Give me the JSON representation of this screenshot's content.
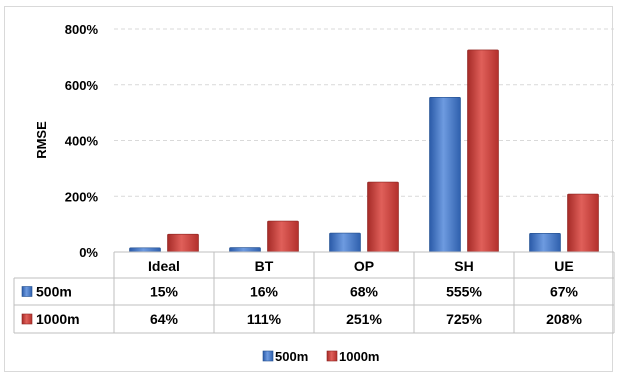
{
  "chart_data": {
    "type": "bar",
    "ylabel": "RMSE",
    "ylim": [
      0,
      800
    ],
    "yticks": [
      "0%",
      "200%",
      "400%",
      "600%",
      "800%"
    ],
    "ytick_values": [
      0,
      200,
      400,
      600,
      800
    ],
    "grid": true,
    "categories": [
      "Ideal",
      "BT",
      "OP",
      "SH",
      "UE"
    ],
    "series": [
      {
        "name": "500m",
        "values": [
          15,
          16,
          68,
          555,
          67
        ],
        "labels": [
          "15%",
          "16%",
          "68%",
          "555%",
          "67%"
        ],
        "color": "#3f74c4"
      },
      {
        "name": "1000m",
        "values": [
          64,
          111,
          251,
          725,
          208
        ],
        "labels": [
          "64%",
          "111%",
          "251%",
          "725%",
          "208%"
        ],
        "color": "#c83a35"
      }
    ],
    "legend_position": "bottom",
    "data_table": true
  }
}
